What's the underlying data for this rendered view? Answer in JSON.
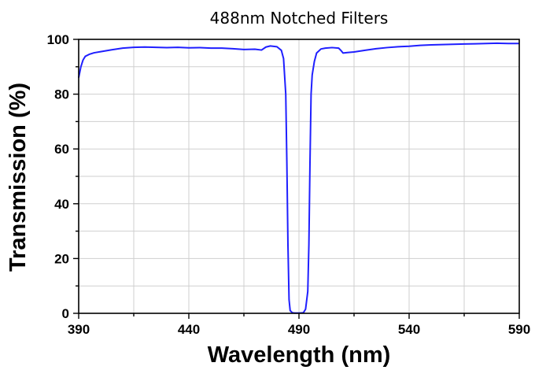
{
  "chart_data": {
    "type": "line",
    "title": "488nm Notched Filters",
    "xlabel": "Wavelength (nm)",
    "ylabel": "Transmission (%)",
    "xlim": [
      390,
      590
    ],
    "ylim": [
      0,
      100
    ],
    "xticks": [
      390,
      440,
      490,
      540,
      590
    ],
    "yticks": [
      0,
      20,
      40,
      60,
      80,
      100
    ],
    "xtick_labels": [
      "390",
      "440",
      "490",
      "540",
      "590"
    ],
    "ytick_labels": [
      "0",
      "20",
      "40",
      "60",
      "80",
      "100"
    ],
    "grid": true,
    "series": [
      {
        "color": "#1f1fff",
        "x": [
          390,
          391,
          392,
          393,
          395,
          397,
          400,
          405,
          410,
          415,
          420,
          425,
          430,
          435,
          440,
          445,
          450,
          455,
          460,
          465,
          470,
          473,
          475,
          477,
          480,
          482,
          483,
          484,
          484.5,
          485,
          485.5,
          486,
          487,
          488,
          490,
          492,
          493,
          494,
          494.5,
          495,
          495.5,
          496,
          497,
          498,
          500,
          502,
          505,
          508,
          509,
          510,
          512,
          515,
          520,
          525,
          530,
          535,
          540,
          545,
          550,
          555,
          560,
          565,
          570,
          575,
          580,
          585,
          590
        ],
        "y": [
          86,
          90,
          92.5,
          93.8,
          94.6,
          95.1,
          95.5,
          96.2,
          96.8,
          97.1,
          97.2,
          97.1,
          97.0,
          97.1,
          96.9,
          97.0,
          96.8,
          96.8,
          96.6,
          96.3,
          96.4,
          96.1,
          97.2,
          97.6,
          97.3,
          96.0,
          93.0,
          80,
          55,
          25,
          5,
          1,
          0.2,
          0.1,
          0.1,
          0.2,
          1.5,
          8,
          25,
          55,
          80,
          87,
          92,
          95,
          96.5,
          96.8,
          97.0,
          96.8,
          96.0,
          95.0,
          95.2,
          95.4,
          96.0,
          96.6,
          97.0,
          97.3,
          97.5,
          97.8,
          98.0,
          98.1,
          98.2,
          98.3,
          98.4,
          98.5,
          98.6,
          98.5,
          98.5
        ]
      }
    ]
  }
}
